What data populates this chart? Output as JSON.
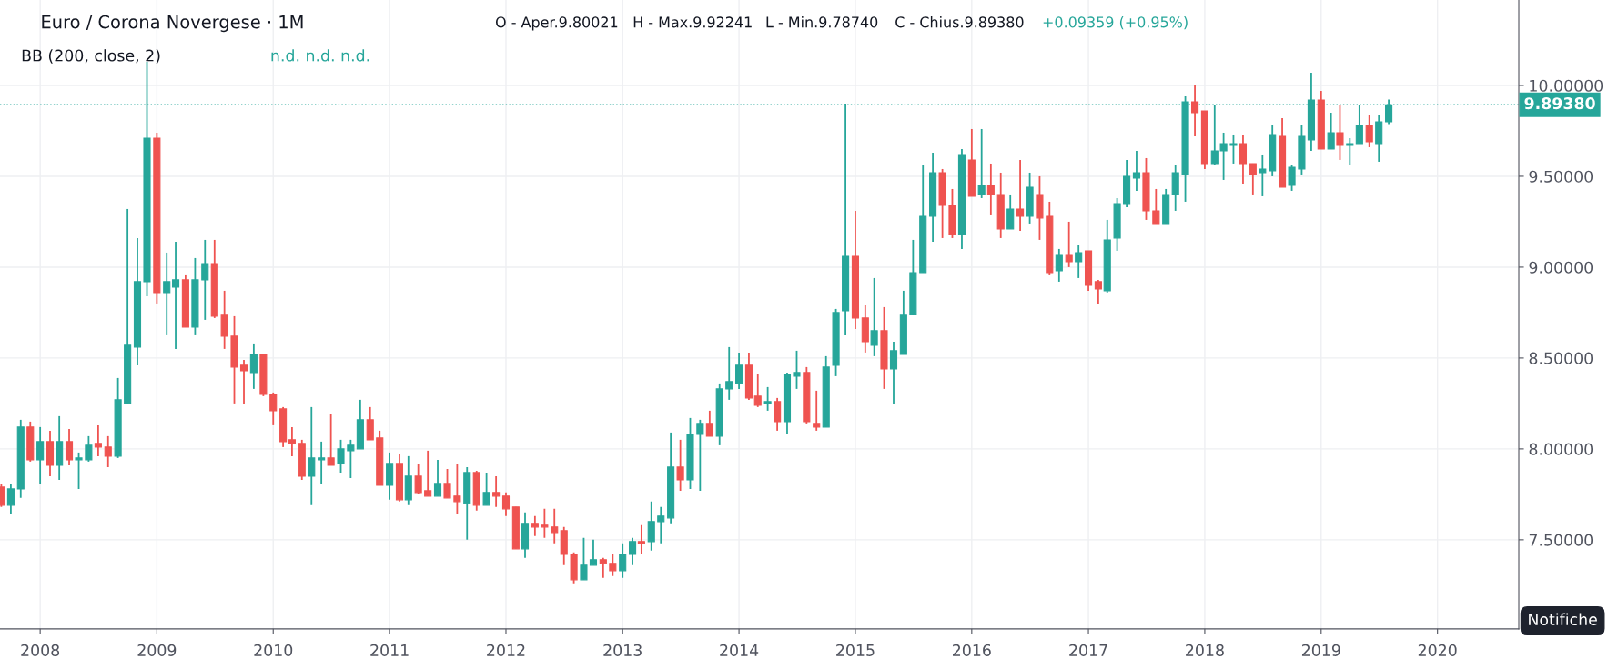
{
  "chart_data": {
    "type": "candlestick",
    "title": "Euro / Corona Novergese · 1M",
    "annotations": [
      "O - Aper.9.80021",
      "H - Max.9.92241",
      "L - Min.9.78740",
      "C - Chius.9.89380",
      "+0.09359 (+0.95%)",
      "BB (200, close, 2)",
      "n.d. n.d. n.d.",
      "Notifiche"
    ],
    "x": [
      "2007-09",
      "2007-10",
      "2007-11",
      "2007-12",
      "2008-01",
      "2008-02",
      "2008-03",
      "2008-04",
      "2008-05",
      "2008-06",
      "2008-07",
      "2008-08",
      "2008-09",
      "2008-10",
      "2008-11",
      "2008-12",
      "2009-01",
      "2009-02",
      "2009-03",
      "2009-04",
      "2009-05",
      "2009-06",
      "2009-07",
      "2009-08",
      "2009-09",
      "2009-10",
      "2009-11",
      "2009-12",
      "2010-01",
      "2010-02",
      "2010-03",
      "2010-04",
      "2010-05",
      "2010-06",
      "2010-07",
      "2010-08",
      "2010-09",
      "2010-10",
      "2010-11",
      "2010-12",
      "2011-01",
      "2011-02",
      "2011-03",
      "2011-04",
      "2011-05",
      "2011-06",
      "2011-07",
      "2011-08",
      "2011-09",
      "2011-10",
      "2011-11",
      "2011-12",
      "2012-01",
      "2012-02",
      "2012-03",
      "2012-04",
      "2012-05",
      "2012-06",
      "2012-07",
      "2012-08",
      "2012-09",
      "2012-10",
      "2012-11",
      "2012-12",
      "2013-01",
      "2013-02",
      "2013-03",
      "2013-04",
      "2013-05",
      "2013-06",
      "2013-07",
      "2013-08",
      "2013-09",
      "2013-10",
      "2013-11",
      "2013-12",
      "2014-01",
      "2014-02",
      "2014-03",
      "2014-04",
      "2014-05",
      "2014-06",
      "2014-07",
      "2014-08",
      "2014-09",
      "2014-10",
      "2014-11",
      "2014-12",
      "2015-01",
      "2015-02",
      "2015-03",
      "2015-04",
      "2015-05",
      "2015-06",
      "2015-07",
      "2015-08",
      "2015-09",
      "2015-10",
      "2015-11",
      "2015-12",
      "2016-01",
      "2016-02",
      "2016-03",
      "2016-04",
      "2016-05",
      "2016-06",
      "2016-07",
      "2016-08",
      "2016-09",
      "2016-10",
      "2016-11",
      "2016-12",
      "2017-01",
      "2017-02",
      "2017-03",
      "2017-04",
      "2017-05",
      "2017-06",
      "2017-07",
      "2017-08",
      "2017-09",
      "2017-10",
      "2017-11",
      "2017-12",
      "2018-01",
      "2018-02",
      "2018-03",
      "2018-04",
      "2018-05",
      "2018-06",
      "2018-07",
      "2018-08",
      "2018-09",
      "2018-10",
      "2018-11",
      "2018-12",
      "2019-01",
      "2019-02",
      "2019-03",
      "2019-04",
      "2019-05",
      "2019-06",
      "2019-07",
      "2019-08"
    ],
    "ohlc": [
      [
        7.79,
        7.81,
        7.68,
        7.69
      ],
      [
        7.69,
        7.81,
        7.64,
        7.78
      ],
      [
        7.78,
        8.16,
        7.73,
        8.12
      ],
      [
        8.12,
        8.15,
        7.93,
        7.94
      ],
      [
        7.94,
        8.12,
        7.81,
        8.04
      ],
      [
        8.04,
        8.1,
        7.85,
        7.91
      ],
      [
        7.91,
        8.18,
        7.83,
        8.04
      ],
      [
        8.04,
        8.11,
        7.91,
        7.94
      ],
      [
        7.94,
        7.98,
        7.78,
        7.95
      ],
      [
        7.94,
        8.07,
        7.93,
        8.02
      ],
      [
        8.03,
        8.13,
        7.96,
        8.01
      ],
      [
        8.01,
        8.07,
        7.9,
        7.96
      ],
      [
        7.96,
        8.39,
        7.95,
        8.27
      ],
      [
        8.25,
        9.32,
        8.25,
        8.57
      ],
      [
        8.56,
        9.16,
        8.46,
        8.92
      ],
      [
        8.92,
        10.13,
        8.84,
        9.71
      ],
      [
        9.71,
        9.74,
        8.8,
        8.86
      ],
      [
        8.86,
        9.08,
        8.63,
        8.92
      ],
      [
        8.89,
        9.14,
        8.55,
        8.93
      ],
      [
        8.93,
        8.96,
        8.67,
        8.67
      ],
      [
        8.67,
        9.05,
        8.63,
        8.93
      ],
      [
        8.93,
        9.15,
        8.71,
        9.02
      ],
      [
        9.02,
        9.15,
        8.72,
        8.73
      ],
      [
        8.74,
        8.87,
        8.55,
        8.62
      ],
      [
        8.62,
        8.73,
        8.25,
        8.45
      ],
      [
        8.46,
        8.49,
        8.25,
        8.43
      ],
      [
        8.42,
        8.58,
        8.33,
        8.52
      ],
      [
        8.52,
        8.52,
        8.29,
        8.3
      ],
      [
        8.3,
        8.31,
        8.13,
        8.21
      ],
      [
        8.22,
        8.23,
        8.01,
        8.04
      ],
      [
        8.05,
        8.12,
        7.96,
        8.03
      ],
      [
        8.03,
        8.05,
        7.83,
        7.85
      ],
      [
        7.85,
        8.23,
        7.69,
        7.95
      ],
      [
        7.94,
        8.04,
        7.81,
        7.95
      ],
      [
        7.95,
        8.19,
        7.91,
        7.91
      ],
      [
        7.92,
        8.05,
        7.87,
        8.0
      ],
      [
        7.99,
        8.05,
        7.84,
        8.02
      ],
      [
        8.0,
        8.27,
        8.0,
        8.16
      ],
      [
        8.16,
        8.23,
        8.05,
        8.05
      ],
      [
        8.06,
        8.1,
        7.8,
        7.8
      ],
      [
        7.8,
        7.98,
        7.72,
        7.92
      ],
      [
        7.92,
        7.97,
        7.71,
        7.72
      ],
      [
        7.72,
        7.96,
        7.69,
        7.85
      ],
      [
        7.85,
        7.92,
        7.75,
        7.76
      ],
      [
        7.77,
        7.99,
        7.74,
        7.74
      ],
      [
        7.74,
        7.94,
        7.74,
        7.81
      ],
      [
        7.81,
        7.89,
        7.73,
        7.73
      ],
      [
        7.74,
        7.92,
        7.64,
        7.71
      ],
      [
        7.7,
        7.9,
        7.5,
        7.87
      ],
      [
        7.87,
        7.88,
        7.66,
        7.69
      ],
      [
        7.69,
        7.87,
        7.69,
        7.76
      ],
      [
        7.76,
        7.85,
        7.68,
        7.74
      ],
      [
        7.74,
        7.76,
        7.63,
        7.67
      ],
      [
        7.68,
        7.68,
        7.45,
        7.45
      ],
      [
        7.45,
        7.65,
        7.4,
        7.59
      ],
      [
        7.59,
        7.63,
        7.52,
        7.57
      ],
      [
        7.58,
        7.67,
        7.51,
        7.57
      ],
      [
        7.57,
        7.67,
        7.48,
        7.54
      ],
      [
        7.55,
        7.57,
        7.36,
        7.42
      ],
      [
        7.42,
        7.43,
        7.26,
        7.28
      ],
      [
        7.28,
        7.51,
        7.28,
        7.36
      ],
      [
        7.36,
        7.5,
        7.36,
        7.39
      ],
      [
        7.39,
        7.4,
        7.29,
        7.37
      ],
      [
        7.37,
        7.42,
        7.3,
        7.33
      ],
      [
        7.33,
        7.48,
        7.29,
        7.42
      ],
      [
        7.42,
        7.51,
        7.36,
        7.49
      ],
      [
        7.49,
        7.58,
        7.42,
        7.48
      ],
      [
        7.49,
        7.71,
        7.44,
        7.6
      ],
      [
        7.6,
        7.68,
        7.48,
        7.63
      ],
      [
        7.62,
        8.09,
        7.59,
        7.9
      ],
      [
        7.9,
        8.05,
        7.77,
        7.83
      ],
      [
        7.83,
        8.17,
        7.78,
        8.08
      ],
      [
        8.08,
        8.16,
        7.77,
        8.14
      ],
      [
        8.14,
        8.21,
        8.07,
        8.07
      ],
      [
        8.07,
        8.36,
        8.02,
        8.33
      ],
      [
        8.33,
        8.56,
        8.27,
        8.37
      ],
      [
        8.36,
        8.53,
        8.33,
        8.46
      ],
      [
        8.46,
        8.53,
        8.27,
        8.28
      ],
      [
        8.29,
        8.41,
        8.23,
        8.24
      ],
      [
        8.25,
        8.34,
        8.21,
        8.26
      ],
      [
        8.26,
        8.28,
        8.1,
        8.15
      ],
      [
        8.15,
        8.42,
        8.08,
        8.41
      ],
      [
        8.4,
        8.54,
        8.33,
        8.42
      ],
      [
        8.42,
        8.45,
        8.14,
        8.15
      ],
      [
        8.14,
        8.32,
        8.1,
        8.12
      ],
      [
        8.12,
        8.51,
        8.12,
        8.45
      ],
      [
        8.46,
        8.77,
        8.4,
        8.75
      ],
      [
        8.76,
        9.9,
        8.63,
        9.06
      ],
      [
        9.06,
        9.31,
        8.66,
        8.72
      ],
      [
        8.72,
        8.79,
        8.53,
        8.59
      ],
      [
        8.57,
        8.94,
        8.51,
        8.65
      ],
      [
        8.65,
        8.78,
        8.33,
        8.44
      ],
      [
        8.44,
        8.59,
        8.25,
        8.54
      ],
      [
        8.52,
        8.87,
        8.52,
        8.74
      ],
      [
        8.74,
        9.15,
        8.74,
        8.97
      ],
      [
        8.97,
        9.56,
        8.97,
        9.28
      ],
      [
        9.28,
        9.63,
        9.14,
        9.52
      ],
      [
        9.52,
        9.54,
        9.16,
        9.34
      ],
      [
        9.34,
        9.43,
        9.16,
        9.18
      ],
      [
        9.18,
        9.65,
        9.1,
        9.62
      ],
      [
        9.59,
        9.76,
        9.39,
        9.39
      ],
      [
        9.4,
        9.76,
        9.38,
        9.45
      ],
      [
        9.45,
        9.57,
        9.29,
        9.4
      ],
      [
        9.4,
        9.52,
        9.16,
        9.21
      ],
      [
        9.21,
        9.4,
        9.21,
        9.32
      ],
      [
        9.32,
        9.59,
        9.2,
        9.28
      ],
      [
        9.28,
        9.52,
        9.24,
        9.44
      ],
      [
        9.4,
        9.5,
        9.15,
        9.27
      ],
      [
        9.28,
        9.36,
        8.96,
        8.97
      ],
      [
        8.98,
        9.1,
        8.92,
        9.07
      ],
      [
        9.07,
        9.25,
        9.0,
        9.03
      ],
      [
        9.03,
        9.12,
        8.94,
        9.08
      ],
      [
        9.09,
        9.09,
        8.87,
        8.9
      ],
      [
        8.92,
        8.93,
        8.8,
        8.88
      ],
      [
        8.87,
        9.26,
        8.86,
        9.15
      ],
      [
        9.16,
        9.38,
        9.09,
        9.35
      ],
      [
        9.35,
        9.59,
        9.33,
        9.5
      ],
      [
        9.49,
        9.64,
        9.42,
        9.52
      ],
      [
        9.52,
        9.6,
        9.26,
        9.31
      ],
      [
        9.31,
        9.43,
        9.24,
        9.24
      ],
      [
        9.24,
        9.43,
        9.24,
        9.4
      ],
      [
        9.4,
        9.56,
        9.31,
        9.52
      ],
      [
        9.51,
        9.94,
        9.36,
        9.91
      ],
      [
        9.91,
        10.0,
        9.72,
        9.85
      ],
      [
        9.86,
        9.86,
        9.54,
        9.57
      ],
      [
        9.57,
        9.89,
        9.56,
        9.64
      ],
      [
        9.64,
        9.74,
        9.48,
        9.68
      ],
      [
        9.67,
        9.73,
        9.57,
        9.68
      ],
      [
        9.68,
        9.73,
        9.46,
        9.57
      ],
      [
        9.57,
        9.57,
        9.4,
        9.51
      ],
      [
        9.52,
        9.62,
        9.39,
        9.54
      ],
      [
        9.53,
        9.78,
        9.5,
        9.73
      ],
      [
        9.72,
        9.82,
        9.44,
        9.44
      ],
      [
        9.45,
        9.56,
        9.42,
        9.55
      ],
      [
        9.54,
        9.78,
        9.51,
        9.72
      ],
      [
        9.7,
        10.07,
        9.64,
        9.92
      ],
      [
        9.92,
        9.97,
        9.65,
        9.65
      ],
      [
        9.65,
        9.85,
        9.65,
        9.74
      ],
      [
        9.74,
        9.89,
        9.59,
        9.67
      ],
      [
        9.67,
        9.71,
        9.56,
        9.68
      ],
      [
        9.68,
        9.89,
        9.68,
        9.78
      ],
      [
        9.78,
        9.84,
        9.66,
        9.69
      ],
      [
        9.68,
        9.84,
        9.58,
        9.8
      ],
      [
        9.80021,
        9.92241,
        9.7874,
        9.8938
      ]
    ],
    "xlim": [
      "2007-08-28",
      "2020-09-12"
    ],
    "xticks": [
      {
        "value": "2008",
        "label": "2008"
      },
      {
        "value": "2009",
        "label": "2009"
      },
      {
        "value": "2010",
        "label": "2010"
      },
      {
        "value": "2011",
        "label": "2011"
      },
      {
        "value": "2012",
        "label": "2012"
      },
      {
        "value": "2013",
        "label": "2013"
      },
      {
        "value": "2014",
        "label": "2014"
      },
      {
        "value": "2015",
        "label": "2015"
      },
      {
        "value": "2016",
        "label": "2016"
      },
      {
        "value": "2017",
        "label": "2017"
      },
      {
        "value": "2018",
        "label": "2018"
      },
      {
        "value": "2019",
        "label": "2019"
      },
      {
        "value": "2020",
        "label": "2020"
      }
    ],
    "ylim": [
      7.01,
      10.47
    ],
    "yticks": [
      {
        "value": 7.5,
        "label": "7.50000"
      },
      {
        "value": 8.0,
        "label": "8.00000"
      },
      {
        "value": 8.5,
        "label": "8.50000"
      },
      {
        "value": 9.0,
        "label": "9.00000"
      },
      {
        "value": 9.5,
        "label": "9.50000"
      },
      {
        "value": 10.0,
        "label": "10.00000"
      }
    ],
    "ref_lines": [
      {
        "axis": "y",
        "value": 9.8938,
        "label": "9.89380",
        "color": "#26a69a",
        "line_style": "dotted"
      }
    ],
    "grid": true
  }
}
